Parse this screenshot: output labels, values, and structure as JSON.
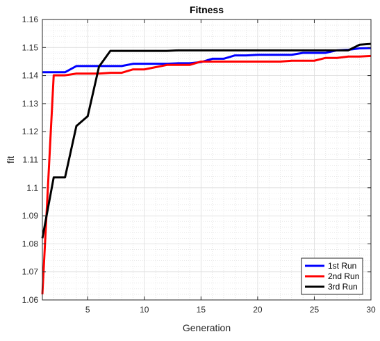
{
  "chart_data": {
    "type": "line",
    "title": "Fitness",
    "xlabel": "Generation",
    "ylabel": "fit",
    "xlim": [
      1,
      30
    ],
    "ylim": [
      1.06,
      1.16
    ],
    "xticks": [
      5,
      10,
      15,
      20,
      25,
      30
    ],
    "yticks": [
      1.06,
      1.07,
      1.08,
      1.09,
      1.1,
      1.11,
      1.12,
      1.13,
      1.14,
      1.15,
      1.16
    ],
    "ytick_labels": [
      "1.06",
      "1.07",
      "1.08",
      "1.09",
      "1.1",
      "1.11",
      "1.12",
      "1.13",
      "1.14",
      "1.15",
      "1.16"
    ],
    "grid": true,
    "minor_grid": true,
    "legend_position": "bottom-right",
    "x": [
      1,
      2,
      3,
      4,
      5,
      6,
      7,
      8,
      9,
      10,
      11,
      12,
      13,
      14,
      15,
      16,
      17,
      18,
      19,
      20,
      21,
      22,
      23,
      24,
      25,
      26,
      27,
      28,
      29,
      30
    ],
    "series": [
      {
        "name": "1st Run",
        "color": "#0000ff",
        "values": [
          1.1412,
          1.1412,
          1.1412,
          1.1434,
          1.1434,
          1.1434,
          1.1434,
          1.1434,
          1.1442,
          1.1442,
          1.1442,
          1.1442,
          1.1444,
          1.1444,
          1.1448,
          1.146,
          1.146,
          1.1472,
          1.1472,
          1.1474,
          1.1474,
          1.1474,
          1.1474,
          1.1481,
          1.1481,
          1.1481,
          1.149,
          1.1492,
          1.1497,
          1.1498
        ]
      },
      {
        "name": "2nd Run",
        "color": "#ff0000",
        "values": [
          1.062,
          1.1401,
          1.1401,
          1.1407,
          1.1407,
          1.1407,
          1.141,
          1.141,
          1.1422,
          1.1422,
          1.143,
          1.1438,
          1.1438,
          1.1438,
          1.145,
          1.145,
          1.145,
          1.145,
          1.145,
          1.145,
          1.145,
          1.145,
          1.1453,
          1.1453,
          1.1453,
          1.1463,
          1.1463,
          1.1468,
          1.1468,
          1.147
        ]
      },
      {
        "name": "3rd Run",
        "color": "#000000",
        "values": [
          1.082,
          1.1037,
          1.1037,
          1.122,
          1.1255,
          1.1432,
          1.1488,
          1.1488,
          1.1488,
          1.1488,
          1.1488,
          1.1488,
          1.149,
          1.149,
          1.149,
          1.149,
          1.149,
          1.149,
          1.149,
          1.149,
          1.149,
          1.149,
          1.149,
          1.149,
          1.149,
          1.149,
          1.149,
          1.149,
          1.151,
          1.1513
        ]
      }
    ]
  }
}
